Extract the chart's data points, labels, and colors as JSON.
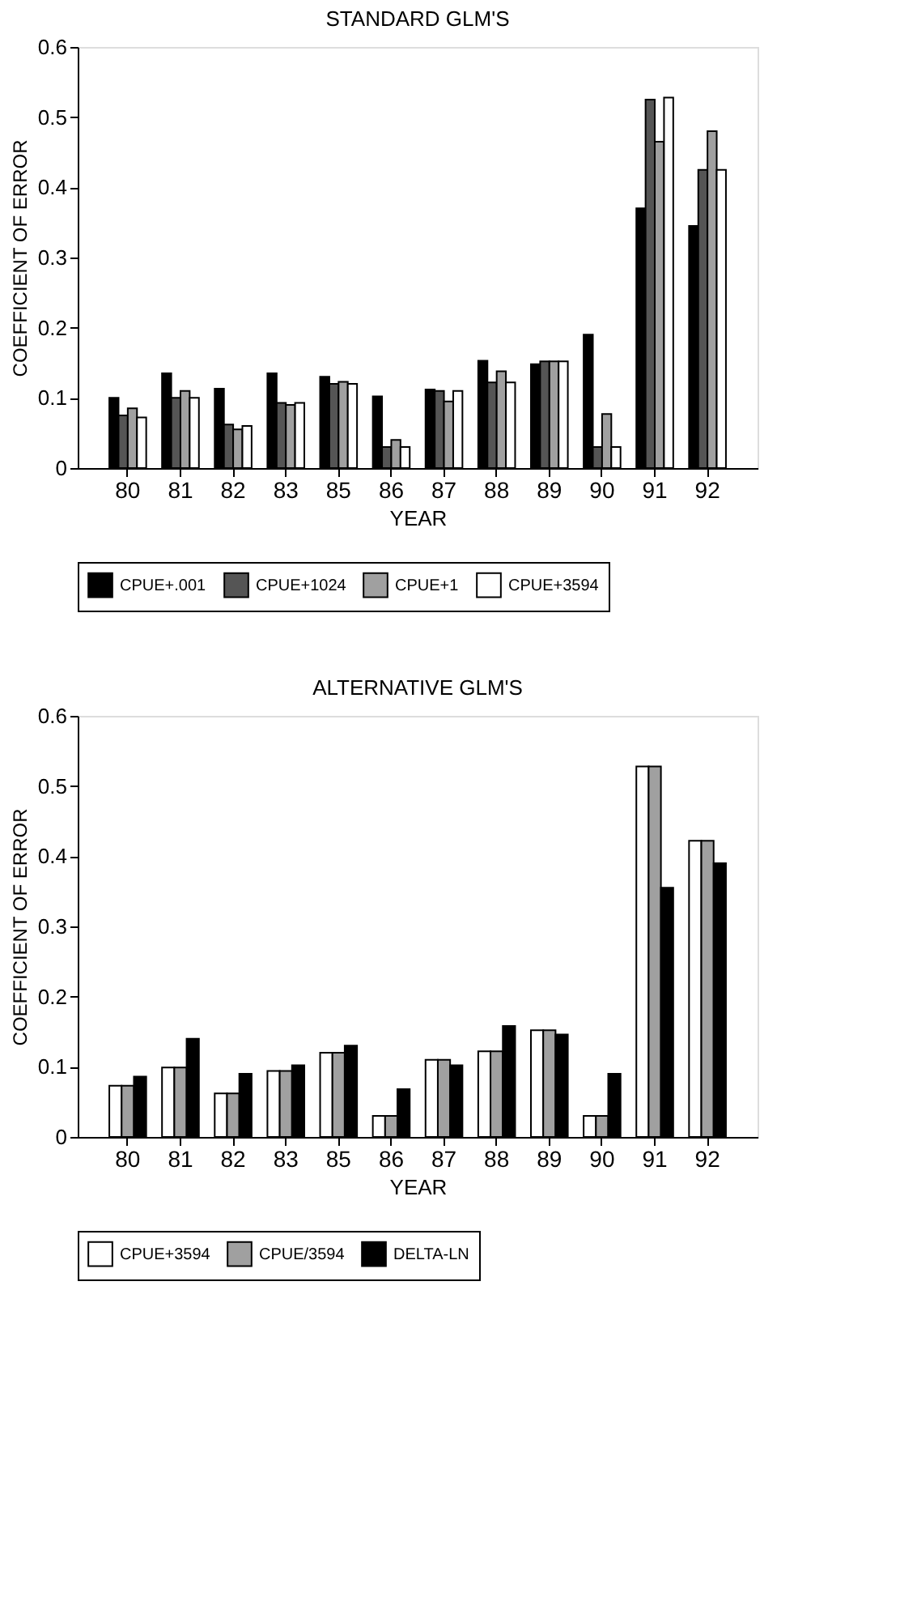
{
  "chart_data": [
    {
      "type": "bar",
      "title": "STANDARD GLM'S",
      "xlabel": "YEAR",
      "ylabel": "COEFFICIENT OF ERROR",
      "categories": [
        "80",
        "81",
        "82",
        "83",
        "85",
        "86",
        "87",
        "88",
        "89",
        "90",
        "91",
        "92"
      ],
      "ylim": [
        0,
        0.6
      ],
      "yticks": [
        0,
        0.1,
        0.2,
        0.3,
        0.4,
        0.5,
        0.6
      ],
      "grid": false,
      "legend": "bottom",
      "series": [
        {
          "name": "CPUE+.001",
          "color": "#000000",
          "values": [
            0.1,
            0.135,
            0.113,
            0.135,
            0.13,
            0.102,
            0.112,
            0.153,
            0.148,
            0.19,
            0.37,
            0.345
          ]
        },
        {
          "name": "CPUE+1024",
          "color": "#555555",
          "values": [
            0.075,
            0.1,
            0.062,
            0.093,
            0.12,
            0.03,
            0.11,
            0.122,
            0.152,
            0.03,
            0.525,
            0.425
          ]
        },
        {
          "name": "CPUE+1",
          "color": "#a0a0a0",
          "values": [
            0.085,
            0.11,
            0.055,
            0.09,
            0.123,
            0.04,
            0.095,
            0.138,
            0.152,
            0.077,
            0.465,
            0.48
          ]
        },
        {
          "name": "CPUE+3594",
          "color": "#ffffff",
          "values": [
            0.072,
            0.1,
            0.06,
            0.093,
            0.12,
            0.03,
            0.11,
            0.122,
            0.152,
            0.03,
            0.528,
            0.425
          ]
        }
      ]
    },
    {
      "type": "bar",
      "title": "ALTERNATIVE GLM'S",
      "xlabel": "YEAR",
      "ylabel": "COEFFICIENT OF ERROR",
      "categories": [
        "80",
        "81",
        "82",
        "83",
        "85",
        "86",
        "87",
        "88",
        "89",
        "90",
        "91",
        "92"
      ],
      "ylim": [
        0,
        0.6
      ],
      "yticks": [
        0,
        0.1,
        0.2,
        0.3,
        0.4,
        0.5,
        0.6
      ],
      "grid": false,
      "legend": "bottom",
      "series": [
        {
          "name": "CPUE+3594",
          "color": "#ffffff",
          "values": [
            0.073,
            0.099,
            0.062,
            0.094,
            0.12,
            0.03,
            0.11,
            0.122,
            0.152,
            0.03,
            0.528,
            0.422
          ]
        },
        {
          "name": "CPUE/3594",
          "color": "#a0a0a0",
          "values": [
            0.073,
            0.099,
            0.062,
            0.094,
            0.12,
            0.03,
            0.11,
            0.122,
            0.152,
            0.03,
            0.528,
            0.422
          ]
        },
        {
          "name": "DELTA-LN",
          "color": "#000000",
          "values": [
            0.086,
            0.14,
            0.09,
            0.102,
            0.13,
            0.068,
            0.102,
            0.158,
            0.146,
            0.09,
            0.355,
            0.39
          ]
        }
      ]
    }
  ]
}
